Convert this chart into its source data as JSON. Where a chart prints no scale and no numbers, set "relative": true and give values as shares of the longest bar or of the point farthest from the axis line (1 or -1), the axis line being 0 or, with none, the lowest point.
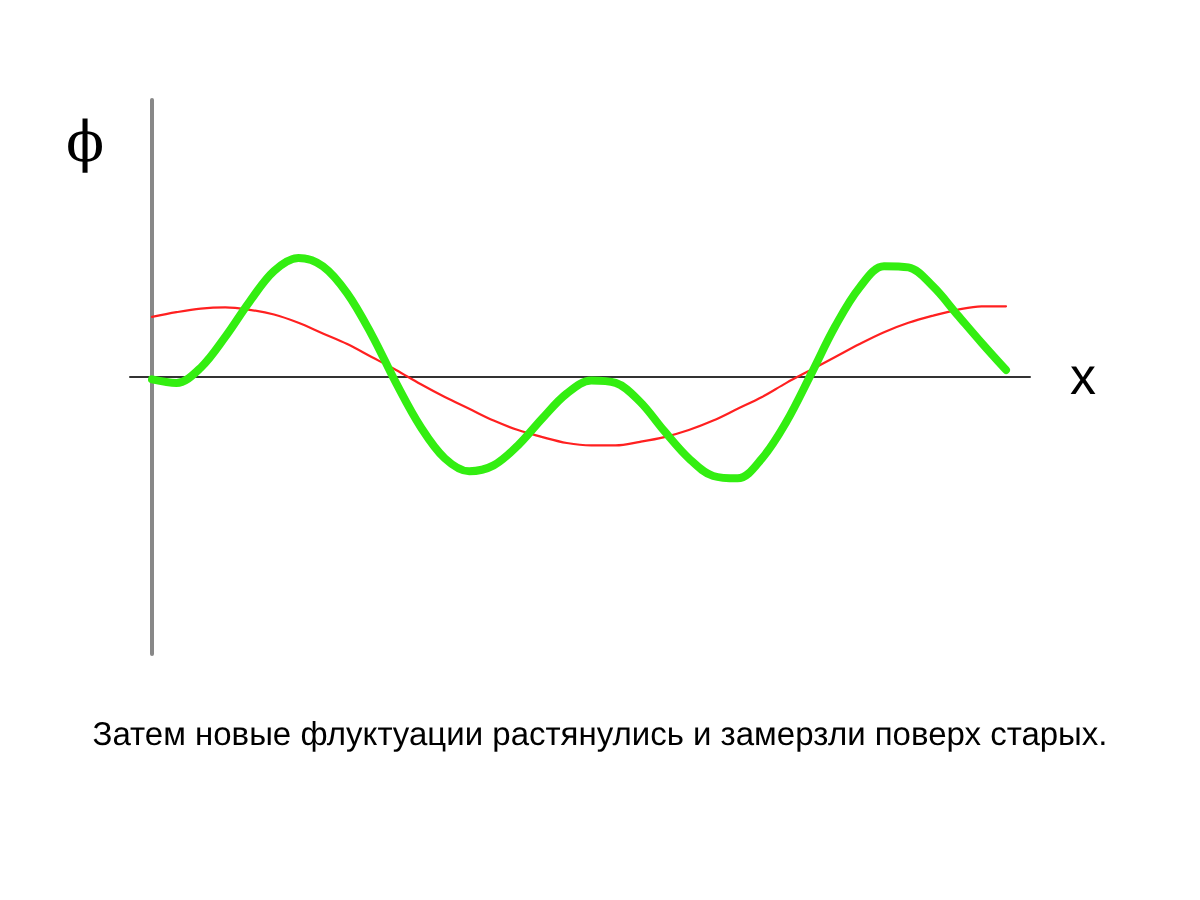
{
  "chart_data": {
    "type": "line",
    "relative": true,
    "xlabel": "x",
    "ylabel": "ϕ",
    "marker": "none",
    "annotations": [
      "Затем новые флуктуации растянулись и замерзли поверх старых."
    ],
    "categories": [
      null,
      null,
      null,
      null,
      null,
      null,
      null,
      null,
      null,
      null,
      null,
      null,
      null,
      null,
      null,
      null,
      null,
      null,
      null,
      null,
      null,
      null,
      null,
      null,
      null,
      null,
      null,
      null,
      null,
      null,
      null,
      null,
      null,
      null,
      null,
      null
    ],
    "series": [
      {
        "color": "#ff2020",
        "values": [
          0.5,
          0.54,
          0.57,
          0.58,
          0.56,
          0.52,
          0.45,
          0.36,
          0.27,
          0.16,
          0.05,
          -0.07,
          -0.18,
          -0.28,
          -0.38,
          -0.46,
          -0.52,
          -0.57,
          -0.59,
          -0.59,
          -0.56,
          -0.52,
          -0.46,
          -0.38,
          -0.28,
          -0.18,
          -0.06,
          0.05,
          0.16,
          0.27,
          0.37,
          0.45,
          0.51,
          0.56,
          0.59,
          0.59
        ]
      },
      {
        "color": "#33ee11",
        "values": [
          -0.03,
          -0.06,
          0.07,
          0.33,
          0.63,
          0.89,
          1.0,
          0.93,
          0.7,
          0.35,
          -0.06,
          -0.43,
          -0.7,
          -0.81,
          -0.76,
          -0.59,
          -0.36,
          -0.15,
          -0.04,
          -0.06,
          -0.22,
          -0.47,
          -0.7,
          -0.85,
          -0.87,
          -0.7,
          -0.39,
          0.01,
          0.42,
          0.75,
          0.93,
          0.92,
          0.76,
          0.52,
          0.28,
          0.05
        ]
      }
    ]
  }
}
